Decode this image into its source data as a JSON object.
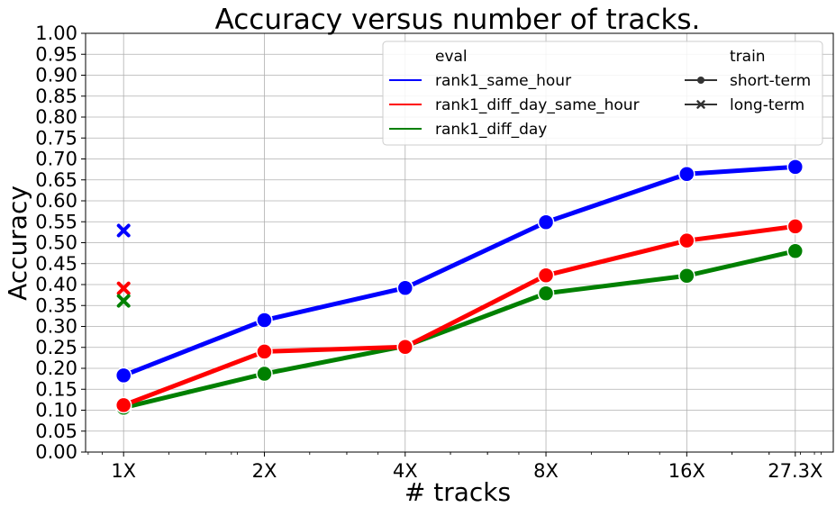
{
  "chart_data": {
    "type": "line",
    "title": "Accuracy versus number of tracks.",
    "xlabel": "# tracks",
    "ylabel": "Accuracy",
    "x_scale": "log2",
    "categories": [
      "1X",
      "2X",
      "4X",
      "8X",
      "16X",
      "27.3X"
    ],
    "x": [
      1,
      2,
      4,
      8,
      16,
      27.3
    ],
    "ylim": [
      0,
      1
    ],
    "yticks": [
      "0.00",
      "0.05",
      "0.10",
      "0.15",
      "0.20",
      "0.25",
      "0.30",
      "0.35",
      "0.40",
      "0.45",
      "0.50",
      "0.55",
      "0.60",
      "0.65",
      "0.70",
      "0.75",
      "0.80",
      "0.85",
      "0.90",
      "0.95",
      "1.00"
    ],
    "grid": true,
    "legend_position": "top-right",
    "legend": {
      "eval_title": "eval",
      "train_title": "train",
      "eval_entries": [
        "rank1_same_hour",
        "rank1_diff_day_same_hour",
        "rank1_diff_day"
      ],
      "train_entries": [
        "short-term",
        "long-term"
      ]
    },
    "series": [
      {
        "name": "rank1_same_hour",
        "train": "short-term",
        "color": "#0000ff",
        "values": [
          0.183,
          0.315,
          0.392,
          0.549,
          0.664,
          0.681
        ]
      },
      {
        "name": "rank1_diff_day_same_hour",
        "train": "short-term",
        "color": "#ff0000",
        "values": [
          0.112,
          0.24,
          0.251,
          0.422,
          0.505,
          0.539
        ]
      },
      {
        "name": "rank1_diff_day",
        "train": "short-term",
        "color": "#008000",
        "values": [
          0.106,
          0.187,
          0.253,
          0.379,
          0.421,
          0.48
        ]
      },
      {
        "name": "rank1_same_hour",
        "train": "long-term",
        "color": "#0000ff",
        "values": [
          0.529,
          null,
          null,
          null,
          null,
          null
        ]
      },
      {
        "name": "rank1_diff_day_same_hour",
        "train": "long-term",
        "color": "#ff0000",
        "values": [
          0.391,
          null,
          null,
          null,
          null,
          null
        ]
      },
      {
        "name": "rank1_diff_day",
        "train": "long-term",
        "color": "#008000",
        "values": [
          0.361,
          null,
          null,
          null,
          null,
          null
        ]
      }
    ]
  }
}
